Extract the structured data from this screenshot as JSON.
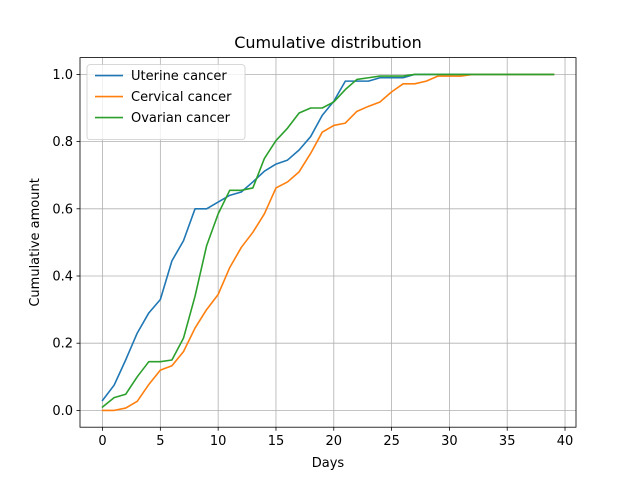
{
  "chart_data": {
    "type": "line",
    "title": "Cumulative distribution",
    "xlabel": "Days",
    "ylabel": "Cumulative amount",
    "xlim": [
      -1.95,
      40.95
    ],
    "ylim": [
      -0.05,
      1.05
    ],
    "xticks": [
      0,
      5,
      10,
      15,
      20,
      25,
      30,
      35,
      40
    ],
    "yticks": [
      0.0,
      0.2,
      0.4,
      0.6,
      0.8,
      1.0
    ],
    "grid": true,
    "legend_position": "upper-left",
    "series": [
      {
        "name": "Uterine cancer",
        "color": "#1f77b4",
        "x": [
          0,
          1,
          2,
          3,
          4,
          5,
          6,
          7,
          8,
          9,
          10,
          11,
          12,
          13,
          14,
          15,
          16,
          17,
          18,
          19,
          20,
          21,
          22,
          23,
          24,
          25,
          26,
          27,
          28,
          29,
          30,
          31,
          32,
          33,
          34,
          35,
          36,
          37,
          38,
          39
        ],
        "y": [
          0.03,
          0.075,
          0.15,
          0.23,
          0.29,
          0.33,
          0.445,
          0.505,
          0.6,
          0.6,
          0.62,
          0.64,
          0.65,
          0.68,
          0.712,
          0.733,
          0.745,
          0.775,
          0.815,
          0.878,
          0.92,
          0.98,
          0.98,
          0.98,
          0.99,
          0.99,
          0.99,
          1.0,
          1.0,
          1.0,
          1.0,
          1.0,
          1.0,
          1.0,
          1.0,
          1.0,
          1.0,
          1.0,
          1.0,
          1.0
        ]
      },
      {
        "name": "Cervical cancer",
        "color": "#ff7f0e",
        "x": [
          0,
          1,
          2,
          3,
          4,
          5,
          6,
          7,
          8,
          9,
          10,
          11,
          12,
          13,
          14,
          15,
          16,
          17,
          18,
          19,
          20,
          21,
          22,
          23,
          24,
          25,
          26,
          27,
          28,
          29,
          30,
          31,
          32,
          33,
          34,
          35,
          36,
          37,
          38,
          39
        ],
        "y": [
          0.0,
          0.0,
          0.007,
          0.027,
          0.077,
          0.12,
          0.133,
          0.175,
          0.245,
          0.3,
          0.345,
          0.425,
          0.485,
          0.53,
          0.585,
          0.662,
          0.68,
          0.71,
          0.765,
          0.828,
          0.848,
          0.855,
          0.89,
          0.905,
          0.918,
          0.948,
          0.972,
          0.972,
          0.98,
          0.995,
          0.995,
          0.995,
          1.0,
          1.0,
          1.0,
          1.0,
          1.0,
          1.0,
          1.0,
          1.0
        ]
      },
      {
        "name": "Ovarian cancer",
        "color": "#2ca02c",
        "x": [
          0,
          1,
          2,
          3,
          4,
          5,
          6,
          7,
          8,
          9,
          10,
          11,
          12,
          13,
          14,
          15,
          16,
          17,
          18,
          19,
          20,
          21,
          22,
          23,
          24,
          25,
          26,
          27,
          28,
          29,
          30,
          31,
          32,
          33,
          34,
          35,
          36,
          37,
          38,
          39
        ],
        "y": [
          0.01,
          0.038,
          0.048,
          0.1,
          0.145,
          0.145,
          0.15,
          0.215,
          0.34,
          0.49,
          0.585,
          0.655,
          0.655,
          0.662,
          0.75,
          0.803,
          0.84,
          0.885,
          0.9,
          0.9,
          0.918,
          0.955,
          0.985,
          0.99,
          0.995,
          0.995,
          0.995,
          1.0,
          1.0,
          1.0,
          1.0,
          1.0,
          1.0,
          1.0,
          1.0,
          1.0,
          1.0,
          1.0,
          1.0,
          1.0
        ]
      }
    ]
  }
}
